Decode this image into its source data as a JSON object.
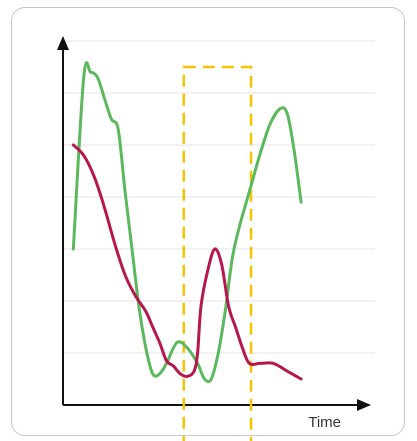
{
  "chart_data": {
    "type": "line",
    "title": "",
    "xlabel": "Time",
    "ylabel": "",
    "xlim": [
      0,
      100
    ],
    "ylim": [
      0,
      10
    ],
    "grid": true,
    "legend": "none",
    "gridlines_y": [
      1,
      2,
      3,
      4,
      5,
      6,
      7
    ],
    "series": [
      {
        "color": "#5cb85c",
        "points": [
          [
            3,
            3
          ],
          [
            6,
            6.3
          ],
          [
            8,
            6.4
          ],
          [
            10,
            6.3
          ],
          [
            12,
            5.9
          ],
          [
            14,
            5.5
          ],
          [
            16,
            5.3
          ],
          [
            18,
            4.1
          ],
          [
            20,
            3.0
          ],
          [
            22,
            1.9
          ],
          [
            24,
            1.1
          ],
          [
            26,
            0.6
          ],
          [
            28,
            0.6
          ],
          [
            30,
            0.8
          ],
          [
            33,
            1.2
          ],
          [
            36,
            1.1
          ],
          [
            39,
            0.8
          ],
          [
            41,
            0.5
          ],
          [
            43,
            0.5
          ],
          [
            45,
            1.0
          ],
          [
            47,
            1.8
          ],
          [
            49,
            2.8
          ],
          [
            51,
            3.4
          ],
          [
            54,
            4.1
          ],
          [
            57,
            4.8
          ],
          [
            60,
            5.4
          ],
          [
            63,
            5.7
          ],
          [
            65,
            5.6
          ],
          [
            67,
            4.9
          ],
          [
            69,
            3.9
          ]
        ]
      },
      {
        "color": "#b5174f",
        "points": [
          [
            3,
            5
          ],
          [
            6,
            4.8
          ],
          [
            9,
            4.4
          ],
          [
            12,
            3.8
          ],
          [
            15,
            3.1
          ],
          [
            18,
            2.5
          ],
          [
            21,
            2.1
          ],
          [
            24,
            1.8
          ],
          [
            26,
            1.5
          ],
          [
            28,
            1.2
          ],
          [
            30,
            0.85
          ],
          [
            32,
            0.75
          ],
          [
            34,
            0.6
          ],
          [
            36,
            0.55
          ],
          [
            38,
            0.65
          ],
          [
            39,
            1.0
          ],
          [
            40,
            1.9
          ],
          [
            42,
            2.6
          ],
          [
            44,
            3.0
          ],
          [
            46,
            2.7
          ],
          [
            48,
            1.9
          ],
          [
            50,
            1.5
          ],
          [
            52,
            1.1
          ],
          [
            54,
            0.8
          ],
          [
            57,
            0.8
          ],
          [
            61,
            0.8
          ],
          [
            65,
            0.65
          ],
          [
            69,
            0.5
          ]
        ]
      }
    ],
    "annotations": [
      {
        "type": "dashed-rectangle",
        "color": "#f5c400",
        "x_range": [
          35,
          54.5
        ],
        "y_range": [
          -0.8,
          6.5
        ]
      }
    ]
  }
}
